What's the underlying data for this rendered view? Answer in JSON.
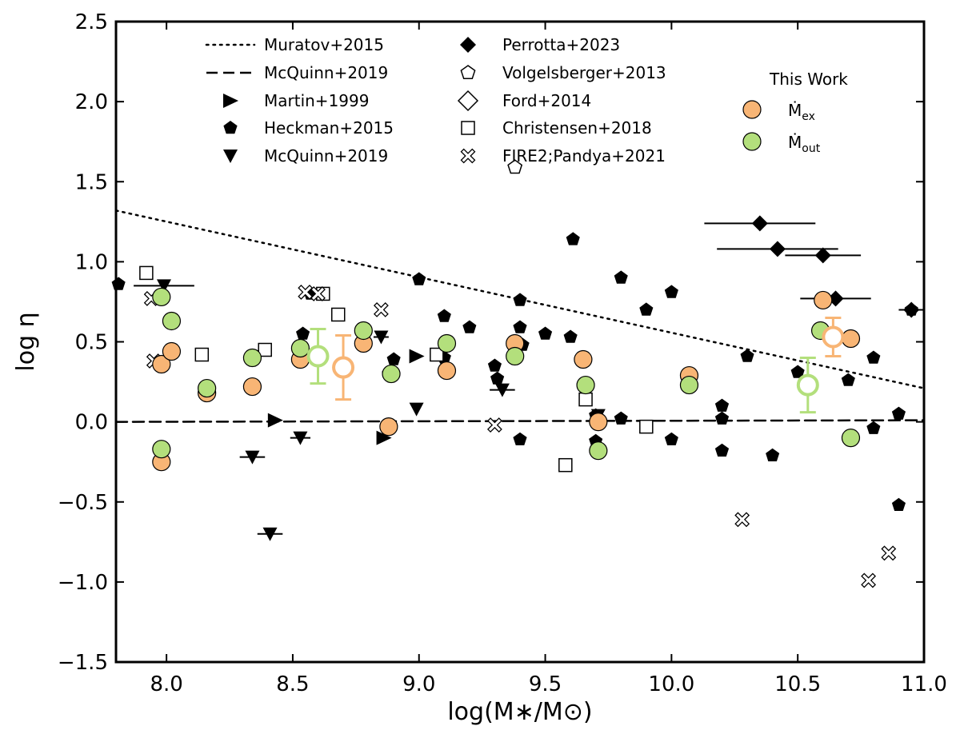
{
  "chart_data": {
    "type": "scatter",
    "xlabel": "log(M∗/M⊙)",
    "ylabel": "log η",
    "xlim": [
      7.8,
      11.0
    ],
    "ylim": [
      -1.5,
      2.5
    ],
    "xticks": [
      "8.0",
      "8.5",
      "9.0",
      "9.5",
      "10.0",
      "10.5",
      "11.0"
    ],
    "yticks": [
      "−1.5",
      "−1.0",
      "−0.5",
      "0.0",
      "0.5",
      "1.0",
      "1.5",
      "2.0",
      "2.5"
    ],
    "xtick_values": [
      8.0,
      8.5,
      9.0,
      9.5,
      10.0,
      10.5,
      11.0
    ],
    "ytick_values": [
      -1.5,
      -1.0,
      -0.5,
      0.0,
      0.5,
      1.0,
      1.5,
      2.0,
      2.5
    ],
    "grid": false,
    "legend_placement": "top",
    "colors": {
      "mex": "#f8b575",
      "mout": "#b3df7c",
      "black": "#000000"
    },
    "legend_title": "This Work",
    "legend": [
      {
        "label": "Muratov+2015",
        "marker": "dotted-line"
      },
      {
        "label": "McQuinn+2019",
        "marker": "dashed-line"
      },
      {
        "label": "Martin+1999",
        "marker": "triangle-right"
      },
      {
        "label": "Heckman+2015",
        "marker": "pentagon-filled"
      },
      {
        "label": "McQuinn+2019",
        "marker": "triangle-down"
      },
      {
        "label": "Perrotta+2023",
        "marker": "diamond-filled"
      },
      {
        "label": "Volgelsberger+2013",
        "marker": "pentagon-open"
      },
      {
        "label": "Ford+2014",
        "marker": "diamond-open"
      },
      {
        "label": "Christensen+2018",
        "marker": "square-open"
      },
      {
        "label": "FIRE2;Pandya+2021",
        "marker": "cross-open"
      }
    ],
    "this_work_legend": [
      {
        "label": "Ṁ",
        "sub": "ex",
        "color": "#f8b575"
      },
      {
        "label": "Ṁ",
        "sub": "out",
        "color": "#b3df7c"
      }
    ],
    "series": [
      {
        "name": "Muratov+2015",
        "type": "line",
        "style": "dotted",
        "x": [
          7.8,
          11.0
        ],
        "y": [
          1.32,
          0.21
        ]
      },
      {
        "name": "McQuinn+2019",
        "type": "line",
        "style": "dashed",
        "x": [
          7.8,
          11.0
        ],
        "y": [
          0.0,
          0.01
        ]
      },
      {
        "name": "Martin+1999",
        "marker": "triangle-right",
        "x": [
          8.43,
          8.86,
          8.99
        ],
        "y": [
          0.01,
          -0.1,
          0.41
        ]
      },
      {
        "name": "Heckman+2015",
        "marker": "pentagon-filled",
        "x": [
          7.81,
          8.54,
          8.9,
          9.0,
          9.1,
          9.1,
          9.2,
          9.3,
          9.31,
          9.4,
          9.4,
          9.4,
          9.5,
          9.6,
          9.61,
          9.7,
          9.7,
          9.8,
          9.8,
          9.9,
          10.0,
          10.0,
          10.2,
          10.2,
          10.2,
          10.3,
          10.4,
          10.5,
          10.6,
          10.7,
          10.8,
          10.8,
          10.9,
          10.9,
          10.95,
          8.57,
          8.88,
          9.41
        ],
        "y": [
          0.86,
          0.55,
          0.39,
          0.89,
          0.4,
          0.66,
          0.59,
          0.35,
          0.27,
          0.76,
          0.59,
          -0.11,
          0.55,
          0.53,
          1.14,
          0.04,
          -0.12,
          0.02,
          0.9,
          0.7,
          0.81,
          -0.11,
          0.1,
          0.02,
          -0.18,
          0.41,
          -0.21,
          0.31,
          0.57,
          0.26,
          0.4,
          -0.04,
          0.05,
          -0.52,
          0.7,
          0.8,
          0.3,
          0.48
        ]
      },
      {
        "name": "McQuinn+2019",
        "marker": "triangle-down",
        "x": [
          7.99,
          8.34,
          8.41,
          8.53,
          8.85,
          8.99,
          9.33,
          9.71
        ],
        "y": [
          0.85,
          -0.22,
          -0.7,
          -0.1,
          0.53,
          0.08,
          0.2,
          0.04
        ],
        "xerr": [
          0.12,
          0.05,
          0.05,
          0.04,
          0.03,
          0.0,
          0.05,
          0.0
        ]
      },
      {
        "name": "Perrotta+2023",
        "marker": "diamond-filled",
        "x": [
          10.35,
          10.42,
          10.6,
          10.65,
          10.95
        ],
        "y": [
          1.24,
          1.08,
          1.04,
          0.77,
          0.7
        ],
        "xerr": [
          0.22,
          0.24,
          0.15,
          0.14,
          0.05
        ]
      },
      {
        "name": "Volgelsberger+2013",
        "marker": "pentagon-open",
        "x": [
          9.38
        ],
        "y": [
          1.59
        ]
      },
      {
        "name": "Christensen+2018",
        "marker": "square-open",
        "x": [
          7.92,
          8.14,
          8.39,
          8.62,
          8.68,
          9.07,
          9.58,
          9.66,
          9.9
        ],
        "y": [
          0.93,
          0.42,
          0.45,
          0.8,
          0.67,
          0.42,
          -0.27,
          0.14,
          -0.03
        ]
      },
      {
        "name": "FIRE2;Pandya+2021",
        "marker": "cross-open",
        "x": [
          7.94,
          7.95,
          8.55,
          8.6,
          8.85,
          9.3,
          10.28,
          10.78,
          10.86
        ],
        "y": [
          0.77,
          0.38,
          0.81,
          0.8,
          0.7,
          -0.02,
          -0.61,
          -0.99,
          -0.82
        ]
      },
      {
        "name": "Ṁex",
        "marker": "circle-filled",
        "x": [
          7.98,
          7.98,
          8.02,
          8.16,
          8.34,
          8.53,
          8.78,
          8.88,
          9.11,
          9.38,
          9.65,
          9.71,
          10.07,
          10.6,
          10.71
        ],
        "y": [
          -0.25,
          0.36,
          0.44,
          0.18,
          0.22,
          0.39,
          0.49,
          -0.03,
          0.32,
          0.49,
          0.39,
          0.0,
          0.29,
          0.76,
          0.52
        ]
      },
      {
        "name": "Ṁout",
        "marker": "circle-filled",
        "x": [
          7.98,
          7.98,
          8.02,
          8.16,
          8.34,
          8.53,
          8.78,
          8.89,
          9.11,
          9.38,
          9.66,
          9.71,
          10.07,
          10.59,
          10.71
        ],
        "y": [
          -0.17,
          0.78,
          0.63,
          0.21,
          0.4,
          0.46,
          0.57,
          0.3,
          0.49,
          0.41,
          0.23,
          -0.18,
          0.23,
          0.57,
          -0.1
        ]
      },
      {
        "name": "Ṁex",
        "marker": "circle-open-errorbar",
        "x": [
          8.7,
          10.64
        ],
        "y": [
          0.34,
          0.53
        ],
        "yerr": [
          0.2,
          0.12
        ]
      },
      {
        "name": "Ṁout",
        "marker": "circle-open-errorbar",
        "x": [
          8.6,
          10.54
        ],
        "y": [
          0.41,
          0.23
        ],
        "yerr": [
          0.17,
          0.17
        ]
      }
    ]
  }
}
